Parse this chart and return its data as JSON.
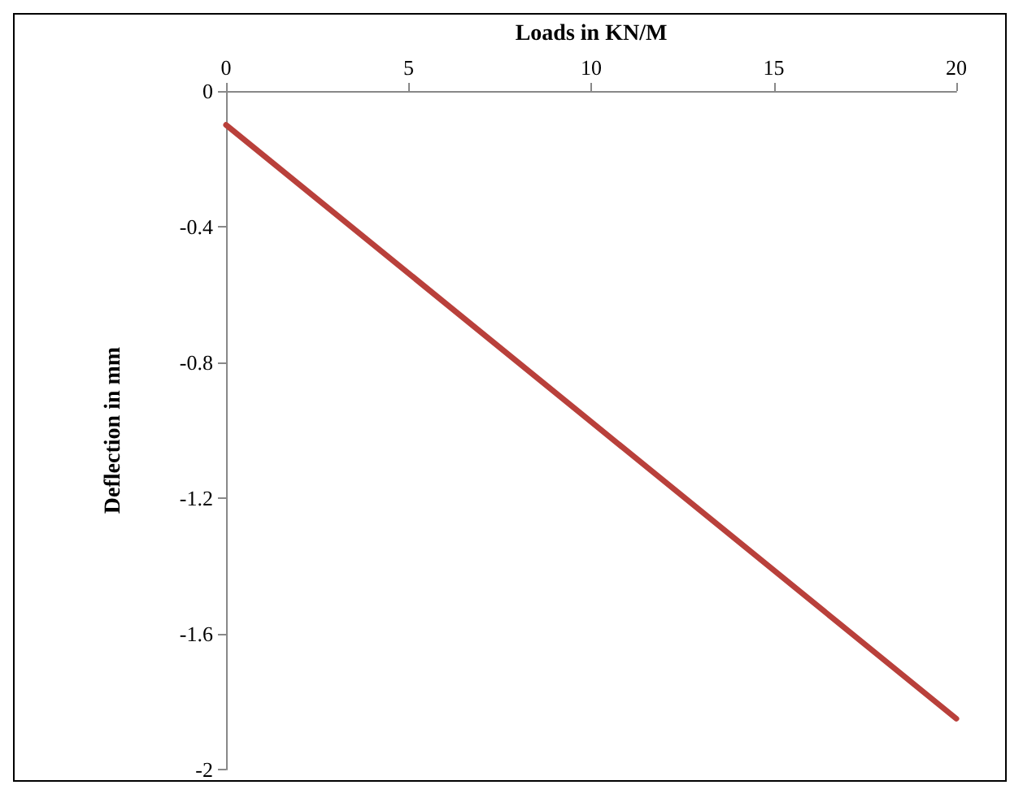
{
  "chart_data": {
    "type": "line",
    "xlabel": "Loads in KN/M",
    "ylabel": "Deflection in mm",
    "x": [
      0,
      20
    ],
    "series": [
      {
        "color": "#b9403b",
        "values": [
          -0.1,
          -1.85
        ]
      }
    ],
    "xlim": [
      0,
      20
    ],
    "xticks": [
      0,
      5,
      10,
      15,
      20
    ],
    "ylim": [
      -2,
      0
    ],
    "yticks": [
      0,
      -0.4,
      -0.8,
      -1.2,
      -1.6,
      -2
    ],
    "grid": false,
    "marker": "none",
    "line_style": "solid"
  }
}
